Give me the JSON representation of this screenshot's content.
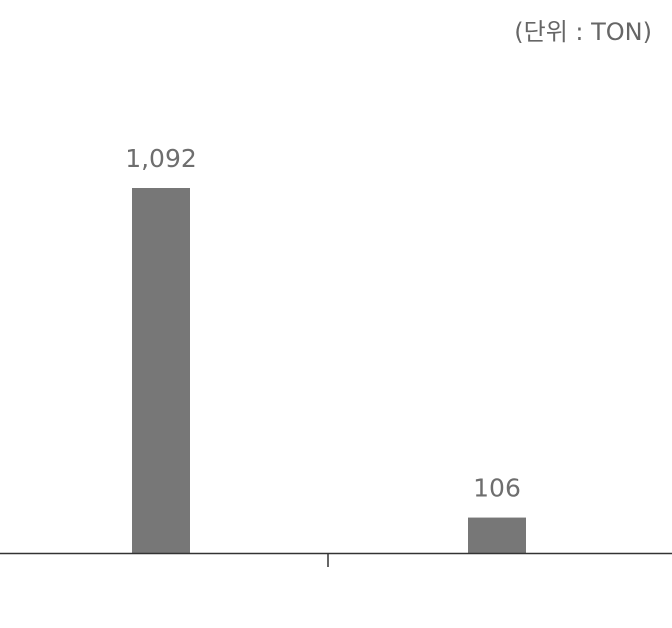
{
  "unit_label": "(단위 : TON)",
  "colors": {
    "bar": "#777777",
    "value_label": "#6e6e6e",
    "axis": "#333333",
    "unit_label": "#666666"
  },
  "chart_data": {
    "type": "bar",
    "categories": [
      "",
      ""
    ],
    "values": [
      1092,
      106
    ],
    "value_labels": [
      "1,092",
      "106"
    ],
    "title": "",
    "xlabel": "",
    "ylabel": "",
    "unit": "(단위 : TON)",
    "ylim": [
      0,
      1092
    ],
    "grid": false,
    "legend": "none"
  }
}
